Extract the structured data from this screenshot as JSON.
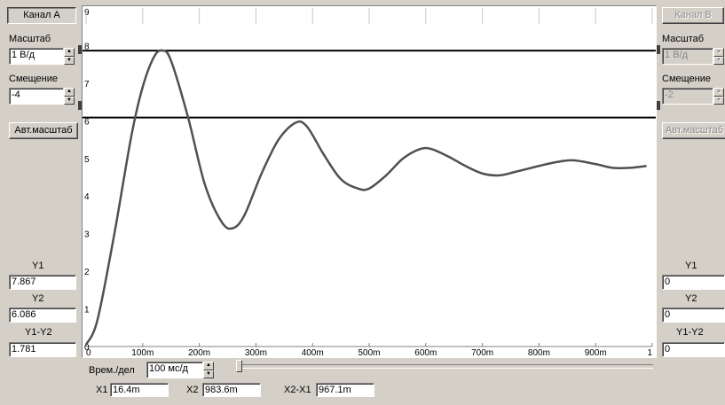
{
  "channel_a": {
    "button": "Канал А",
    "scale_label": "Масштаб",
    "scale_value": "1 В/д",
    "offset_label": "Смещение",
    "offset_value": "-4",
    "auto_button": "Авт.масштаб",
    "y1_label": "Y1",
    "y1_value": "7.867",
    "y2_label": "Y2",
    "y2_value": "6.086",
    "dy_label": "Y1-Y2",
    "dy_value": "1.781"
  },
  "channel_b": {
    "button": "Канал В",
    "scale_label": "Масштаб",
    "scale_value": "1 В/д",
    "offset_label": "Смещение",
    "offset_value": "-2",
    "auto_button": "Авт.масштаб",
    "y1_label": "Y1",
    "y1_value": "0",
    "y2_label": "Y2",
    "y2_value": "0",
    "dy_label": "Y1-Y2",
    "dy_value": "0"
  },
  "time": {
    "label": "Врем./дел",
    "value": "100 мс/д",
    "x1_label": "X1",
    "x1_value": "16.4m",
    "x2_label": "X2",
    "x2_value": "983.6m",
    "dx_label": "X2-X1",
    "dx_value": "967.1m"
  },
  "chart_data": {
    "type": "line",
    "title": "",
    "xlabel": "",
    "ylabel": "",
    "xlim": [
      0,
      1
    ],
    "ylim": [
      0,
      9
    ],
    "x_ticks": [
      "0",
      "100m",
      "200m",
      "300m",
      "400m",
      "500m",
      "600m",
      "700m",
      "800m",
      "900m",
      "1"
    ],
    "y_ticks": [
      "0",
      "1",
      "2",
      "3",
      "4",
      "5",
      "6",
      "7",
      "8",
      "9"
    ],
    "grid": false,
    "cursor_lines_y": [
      7.867,
      6.086
    ],
    "series": [
      {
        "color": "#505050",
        "x": [
          0,
          0.02,
          0.05,
          0.08,
          0.1,
          0.12,
          0.135,
          0.15,
          0.18,
          0.21,
          0.24,
          0.26,
          0.28,
          0.31,
          0.34,
          0.37,
          0.39,
          0.42,
          0.45,
          0.48,
          0.5,
          0.53,
          0.56,
          0.59,
          0.61,
          0.64,
          0.67,
          0.7,
          0.73,
          0.76,
          0.8,
          0.83,
          0.86,
          0.9,
          0.93,
          0.96,
          0.99
        ],
        "y": [
          0.05,
          0.7,
          3.0,
          5.6,
          6.9,
          7.7,
          7.87,
          7.6,
          6.1,
          4.3,
          3.3,
          3.15,
          3.5,
          4.6,
          5.5,
          5.95,
          5.85,
          5.1,
          4.45,
          4.2,
          4.2,
          4.55,
          5.0,
          5.25,
          5.25,
          5.05,
          4.8,
          4.6,
          4.55,
          4.65,
          4.8,
          4.9,
          4.95,
          4.85,
          4.75,
          4.75,
          4.8
        ]
      }
    ]
  }
}
